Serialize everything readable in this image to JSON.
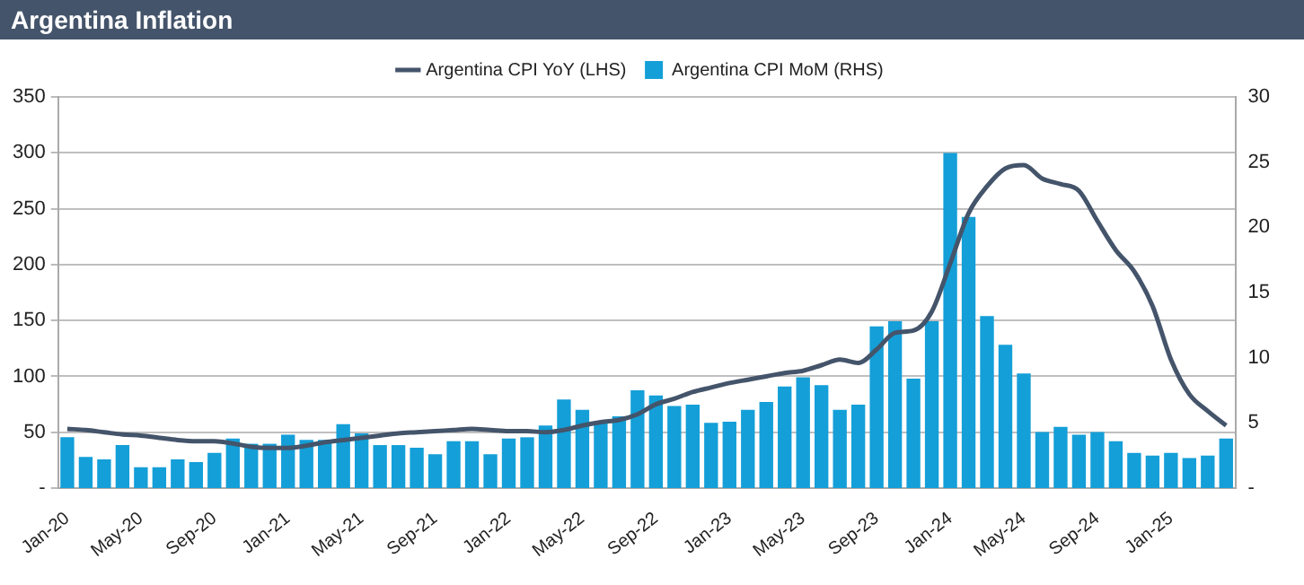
{
  "chart_data": {
    "type": "bar",
    "title": "Argentina Inflation",
    "categories": [
      "Jan-20",
      null,
      null,
      null,
      "May-20",
      null,
      null,
      null,
      "Sep-20",
      null,
      null,
      null,
      "Jan-21",
      null,
      null,
      null,
      "May-21",
      null,
      null,
      null,
      "Sep-21",
      null,
      null,
      null,
      "Jan-22",
      null,
      null,
      null,
      "May-22",
      null,
      null,
      null,
      "Sep-22",
      null,
      null,
      null,
      "Jan-23",
      null,
      null,
      null,
      "May-23",
      null,
      null,
      null,
      "Sep-23",
      null,
      null,
      null,
      "Jan-24",
      null,
      null,
      null,
      "May-24",
      null,
      null,
      null,
      "Sep-24",
      null,
      null,
      null,
      "Jan-25",
      null,
      null,
      null
    ],
    "series": [
      {
        "name": "Argentina CPI YoY (LHS)",
        "type": "line",
        "color": "#44546a",
        "values": [
          53,
          52,
          50,
          48,
          47,
          45,
          43,
          42,
          42,
          40,
          37,
          36,
          36,
          38,
          41,
          43,
          45,
          47,
          49,
          50,
          51,
          52,
          53,
          52,
          51,
          51,
          50,
          52,
          56,
          59,
          61,
          66,
          75,
          80,
          86,
          90,
          94,
          97,
          100,
          103,
          105,
          110,
          115,
          112,
          124,
          139,
          141,
          158,
          201,
          246,
          270,
          286,
          289,
          277,
          272,
          266,
          239,
          213,
          194,
          163,
          115,
          84,
          69,
          56
        ]
      },
      {
        "name": "Argentina CPI MoM (RHS)",
        "axis": "y2",
        "color": "#149fd8",
        "values": [
          3.9,
          2.4,
          2.2,
          3.3,
          1.6,
          1.6,
          2.2,
          2.0,
          2.7,
          3.8,
          3.4,
          3.4,
          4.1,
          3.7,
          3.7,
          4.9,
          4.2,
          3.3,
          3.3,
          3.1,
          2.6,
          3.6,
          3.6,
          2.6,
          3.8,
          3.9,
          4.8,
          6.8,
          6.0,
          5.1,
          5.5,
          7.5,
          7.1,
          6.3,
          6.4,
          5.0,
          5.1,
          6.0,
          6.6,
          7.8,
          8.5,
          7.9,
          6.0,
          6.4,
          12.4,
          12.8,
          8.4,
          12.8,
          25.7,
          20.8,
          13.2,
          11.0,
          8.8,
          4.3,
          4.7,
          4.1,
          4.3,
          3.6,
          2.7,
          2.5,
          2.7,
          2.3,
          2.5,
          3.8
        ]
      }
    ],
    "ylim": [
      0,
      350
    ],
    "yticks": [
      {
        "value": 0,
        "label": "-"
      },
      50,
      100,
      150,
      200,
      250,
      300,
      350
    ],
    "y2lim": [
      0,
      30
    ],
    "y2ticks": [
      {
        "value": 0,
        "label": "-"
      },
      5,
      10,
      15,
      20,
      25,
      30
    ],
    "grid": "y",
    "legend": "top"
  }
}
